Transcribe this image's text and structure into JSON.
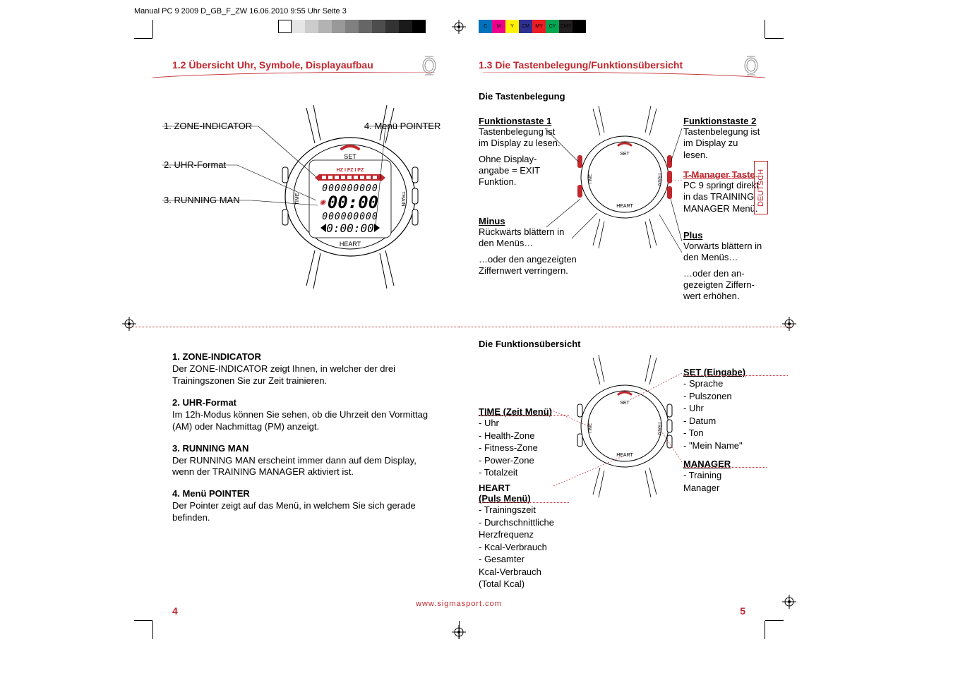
{
  "header_line": "Manual PC 9 2009 D_GB_F_ZW 16.06.2010 9:55 Uhr Seite 3",
  "colorbar": [
    "#ffffff",
    "#e6e6e6",
    "#cccccc",
    "#b3b3b3",
    "#999999",
    "#808080",
    "#666666",
    "#4d4d4d",
    "#333333",
    "#1a1a1a",
    "#000000"
  ],
  "cmyk": [
    {
      "label": "C",
      "bg": "#0072bc"
    },
    {
      "label": "M",
      "bg": "#ec008c"
    },
    {
      "label": "Y",
      "bg": "#fff200"
    },
    {
      "label": "CM",
      "bg": "#2e3192"
    },
    {
      "label": "MY",
      "bg": "#ed1c24"
    },
    {
      "label": "CY",
      "bg": "#00a651"
    },
    {
      "label": "CMY",
      "bg": "#231f20"
    },
    {
      "label": "K",
      "bg": "#000000"
    }
  ],
  "accent": "#c1272d",
  "lang_tab": "DEUTSCH",
  "left": {
    "section_title": "1.2 Übersicht Uhr, Symbole, Displayaufbau",
    "callouts": {
      "c1": "1. ZONE-INDICATOR",
      "c2": "2. UHR-Format",
      "c3": "3. RUNNING MAN",
      "c4": "4. Menü POINTER"
    },
    "desc": [
      {
        "h": "1. ZONE-INDICATOR",
        "p": "Der ZONE-INDICATOR zeigt Ihnen, in welcher der drei Trainingszonen Sie zur Zeit trainieren."
      },
      {
        "h": "2. UHR-Format",
        "p": "Im 12h-Modus können Sie sehen, ob die Uhrzeit den Vormittag (AM) oder Nachmittag (PM) anzeigt."
      },
      {
        "h": "3. RUNNING MAN",
        "p": "Der RUNNING MAN erscheint immer dann auf dem Display, wenn der TRAINING MANAGER aktiviert ist."
      },
      {
        "h": "4. Menü POINTER",
        "p": "Der Pointer zeigt auf das Menü, in welchem Sie sich gerade befinden."
      }
    ],
    "page_num": "4"
  },
  "right": {
    "section_title": "1.3 Die Tastenbelegung/Funktionsübersicht",
    "h_buttons": "Die Tastenbelegung",
    "ft1_h": "Funktionstaste 1",
    "ft1_p1": "Tastenbelegung ist im Display zu lesen.",
    "ft1_p2": "Ohne Display­angabe = EXIT Funktion.",
    "minus_h": "Minus",
    "minus_p1": "Rückwärts blättern in den Menüs…",
    "minus_p2": "…oder den angezeigten Ziffernwert verringern.",
    "ft2_h": "Funktionstaste 2",
    "ft2_p": "Tastenbelegung ist im Display zu lesen.",
    "tman_h": "T-Manager Taste",
    "tman_p": "PC 9 springt direkt in das TRAINING MANAGER Menü.",
    "plus_h": "Plus",
    "plus_p1": "Vorwärts blättern in den Menüs…",
    "plus_p2": "…oder den an­gezeigten Ziffern­wert erhöhen.",
    "h_overview": "Die Funktionsübersicht",
    "time_h": "TIME (Zeit Menü)",
    "time_items": [
      "- Uhr",
      "- Health-Zone",
      "- Fitness-Zone",
      "- Power-Zone",
      "- Totalzeit"
    ],
    "heart_h1": "HEART",
    "heart_h2": "(Puls Menü)",
    "heart_items": [
      "- Trainingszeit",
      "- Durchschnittliche",
      "  Herzfrequenz",
      "- Kcal-Verbrauch",
      "- Gesamter",
      "  Kcal-Verbrauch",
      "  (Total Kcal)"
    ],
    "set_h": "SET (Eingabe)",
    "set_items": [
      "- Sprache",
      "- Pulszonen",
      "- Uhr",
      "- Datum",
      "- Ton",
      "- \"Mein Name\""
    ],
    "mgr_h": "MANAGER",
    "mgr_items": [
      "- Training",
      "  Manager"
    ],
    "page_num": "5"
  },
  "url": "www.sigmasport.com",
  "watch_display": {
    "set": "SET",
    "heart": "HEART",
    "time_side": "TIME",
    "train_side": "TRAIN",
    "zone_text": "HZ  I  FZ  I  PZ",
    "digits_top": "000000000",
    "big_time": "00:00",
    "digits_mid": "000000000",
    "timer": "0:00:00"
  }
}
